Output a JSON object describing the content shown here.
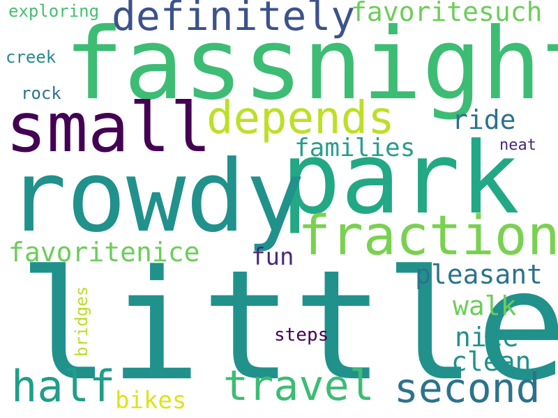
{
  "word_cloud": {
    "words": [
      {
        "text": "little",
        "color": "#21918c"
      },
      {
        "text": "fassnight",
        "color": "#3dbc74"
      },
      {
        "text": "park",
        "color": "#22a884"
      },
      {
        "text": "rowdy",
        "color": "#21918c"
      },
      {
        "text": "small",
        "color": "#440154"
      },
      {
        "text": "fraction",
        "color": "#7ad151"
      },
      {
        "text": "depends",
        "color": "#bddf26"
      },
      {
        "text": "definitely",
        "color": "#3b528b"
      },
      {
        "text": "second",
        "color": "#2c728e"
      },
      {
        "text": "half",
        "color": "#1f9e89"
      },
      {
        "text": "travel",
        "color": "#3dbc74"
      },
      {
        "text": "favoritesuch",
        "color": "#6ccd5a"
      },
      {
        "text": "favoritenice",
        "color": "#6ccd5a"
      },
      {
        "text": "families",
        "color": "#2a9d8e"
      },
      {
        "text": "pleasant",
        "color": "#2c728e"
      },
      {
        "text": "ride",
        "color": "#2c728e"
      },
      {
        "text": "nice",
        "color": "#21918c"
      },
      {
        "text": "clean",
        "color": "#21918c"
      },
      {
        "text": "walk",
        "color": "#6ccd5a"
      },
      {
        "text": "bikes",
        "color": "#dde318"
      },
      {
        "text": "fun",
        "color": "#482878"
      },
      {
        "text": "exploring",
        "color": "#44bf70"
      },
      {
        "text": "creek",
        "color": "#238a8d"
      },
      {
        "text": "rock",
        "color": "#2c728e"
      },
      {
        "text": "neat",
        "color": "#482878"
      },
      {
        "text": "steps",
        "color": "#440154"
      },
      {
        "text": "bridges",
        "color": "#b8de29"
      }
    ]
  }
}
